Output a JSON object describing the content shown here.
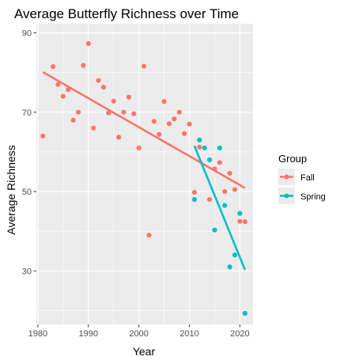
{
  "chart_data": {
    "type": "scatter",
    "title": "Average Butterfly Richness over Time",
    "xlabel": "Year",
    "ylabel": "Average Richness",
    "xlim": [
      1979.7,
      2022.6
    ],
    "ylim": [
      16.5,
      92.3
    ],
    "x_ticks": [
      1980,
      1990,
      2000,
      2010,
      2020
    ],
    "y_ticks": [
      30,
      50,
      70,
      90
    ],
    "grid": true,
    "legend": {
      "title": "Group",
      "position": "right"
    },
    "series": [
      {
        "name": "Fall",
        "color": "#F8766D",
        "points": [
          [
            1981,
            64
          ],
          [
            1983,
            81.5
          ],
          [
            1984,
            77
          ],
          [
            1985,
            74
          ],
          [
            1986,
            75.7
          ],
          [
            1987,
            68
          ],
          [
            1988,
            70
          ],
          [
            1989,
            81.8
          ],
          [
            1990,
            87.3
          ],
          [
            1991,
            66
          ],
          [
            1992,
            78
          ],
          [
            1993,
            76.3
          ],
          [
            1994,
            69.8
          ],
          [
            1995,
            72.8
          ],
          [
            1996,
            63.7
          ],
          [
            1997,
            70
          ],
          [
            1998,
            73.8
          ],
          [
            1999,
            69.6
          ],
          [
            2000,
            61
          ],
          [
            2001,
            81.6
          ],
          [
            2002,
            39
          ],
          [
            2003,
            67.7
          ],
          [
            2004,
            64.4
          ],
          [
            2005,
            72.7
          ],
          [
            2006,
            67.1
          ],
          [
            2007,
            68.3
          ],
          [
            2008,
            70
          ],
          [
            2009,
            64.6
          ],
          [
            2010,
            67
          ],
          [
            2011,
            49.8
          ],
          [
            2012,
            61.2
          ],
          [
            2014,
            48
          ],
          [
            2015,
            55.7
          ],
          [
            2016,
            57.3
          ],
          [
            2017,
            50
          ],
          [
            2018,
            54.6
          ],
          [
            2019,
            50.5
          ],
          [
            2020,
            42.5
          ],
          [
            2021,
            42.4
          ]
        ],
        "trend": [
          [
            1981,
            80.1
          ],
          [
            2021,
            50.9
          ]
        ]
      },
      {
        "name": "Spring",
        "color": "#00BFC4",
        "points": [
          [
            2011,
            48
          ],
          [
            2012,
            63
          ],
          [
            2013,
            61
          ],
          [
            2014,
            58
          ],
          [
            2015,
            40.3
          ],
          [
            2016,
            61
          ],
          [
            2017,
            46.5
          ],
          [
            2018,
            31
          ],
          [
            2019,
            34
          ],
          [
            2020,
            44.5
          ],
          [
            2021,
            19.3
          ]
        ],
        "trend": [
          [
            2011,
            61.5
          ],
          [
            2021,
            30.3
          ]
        ]
      }
    ]
  }
}
